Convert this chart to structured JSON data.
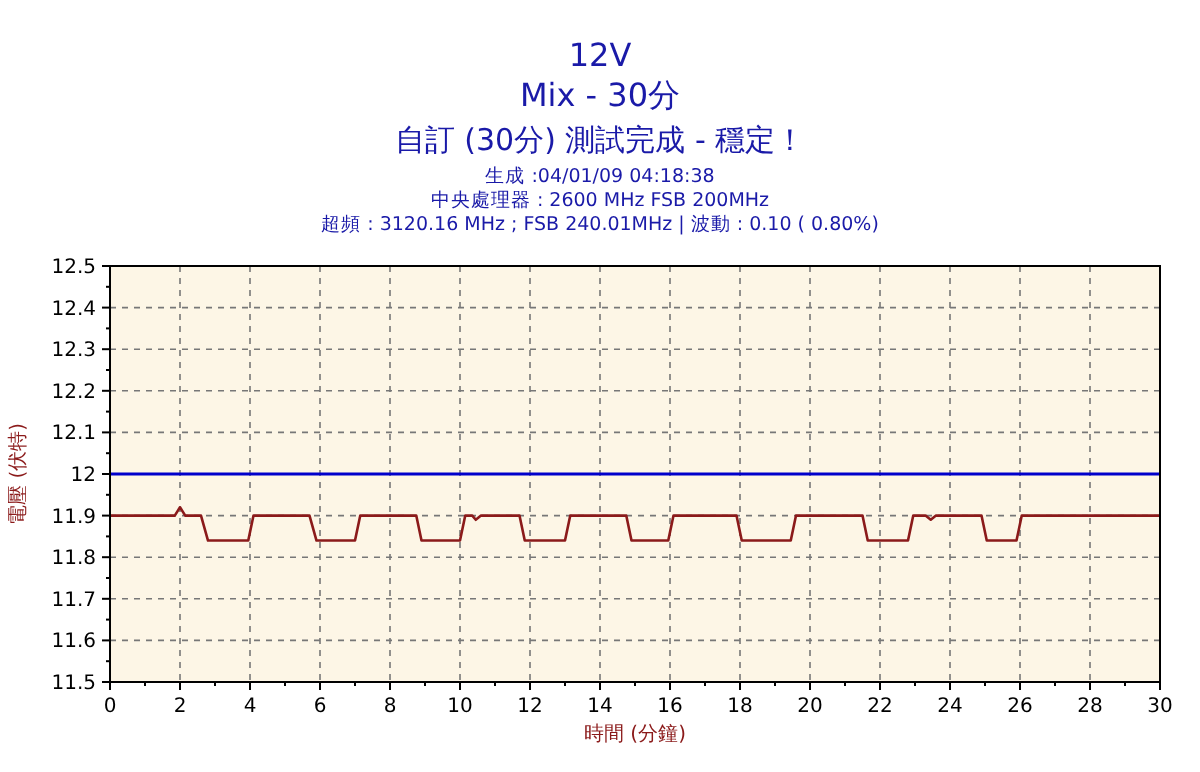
{
  "chart_data": {
    "type": "line",
    "title": "12V",
    "subtitle": "Mix - 30分",
    "annotations": [
      "自訂 (30分) 測試完成 - 穩定！",
      "生成 :04/01/09 04:18:38",
      "中央處理器 : 2600 MHz FSB 200MHz",
      "超頻 : 3120.16 MHz ; FSB 240.01MHz | 波動 : 0.10 ( 0.80%)"
    ],
    "xlabel": "時間 (分鐘)",
    "ylabel": "電壓 (伏特)",
    "xlim": [
      0,
      30
    ],
    "xticks": [
      0,
      2,
      4,
      6,
      8,
      10,
      12,
      14,
      16,
      18,
      20,
      22,
      24,
      26,
      28,
      30
    ],
    "ylim": [
      11.5,
      12.5
    ],
    "yticks": [
      11.5,
      11.6,
      11.7,
      11.8,
      11.9,
      12,
      12.1,
      12.2,
      12.3,
      12.4,
      12.5
    ],
    "grid": true,
    "ref_lines": [
      {
        "axis": "y",
        "value": 12,
        "label": null,
        "color": "#0000cc",
        "line_style": "solid"
      }
    ],
    "series": [
      {
        "color": "#8b1a1a",
        "x": [
          0,
          1.85,
          2.0,
          2.15,
          2.6,
          2.8,
          3.95,
          4.1,
          5.7,
          5.9,
          7.0,
          7.15,
          8.75,
          8.9,
          10.0,
          10.15,
          10.35,
          10.45,
          10.6,
          11.7,
          11.85,
          13.0,
          13.15,
          14.75,
          14.9,
          15.95,
          16.1,
          17.9,
          18.05,
          19.45,
          19.6,
          21.5,
          21.65,
          22.8,
          22.95,
          23.3,
          23.45,
          23.6,
          24.9,
          25.05,
          25.9,
          26.05,
          30
        ],
        "values": [
          11.9,
          11.9,
          11.92,
          11.9,
          11.9,
          11.84,
          11.84,
          11.9,
          11.9,
          11.84,
          11.84,
          11.9,
          11.9,
          11.84,
          11.84,
          11.9,
          11.9,
          11.89,
          11.9,
          11.9,
          11.84,
          11.84,
          11.9,
          11.9,
          11.84,
          11.84,
          11.9,
          11.9,
          11.84,
          11.84,
          11.9,
          11.9,
          11.84,
          11.84,
          11.9,
          11.9,
          11.89,
          11.9,
          11.9,
          11.84,
          11.84,
          11.9,
          11.9
        ]
      }
    ]
  }
}
